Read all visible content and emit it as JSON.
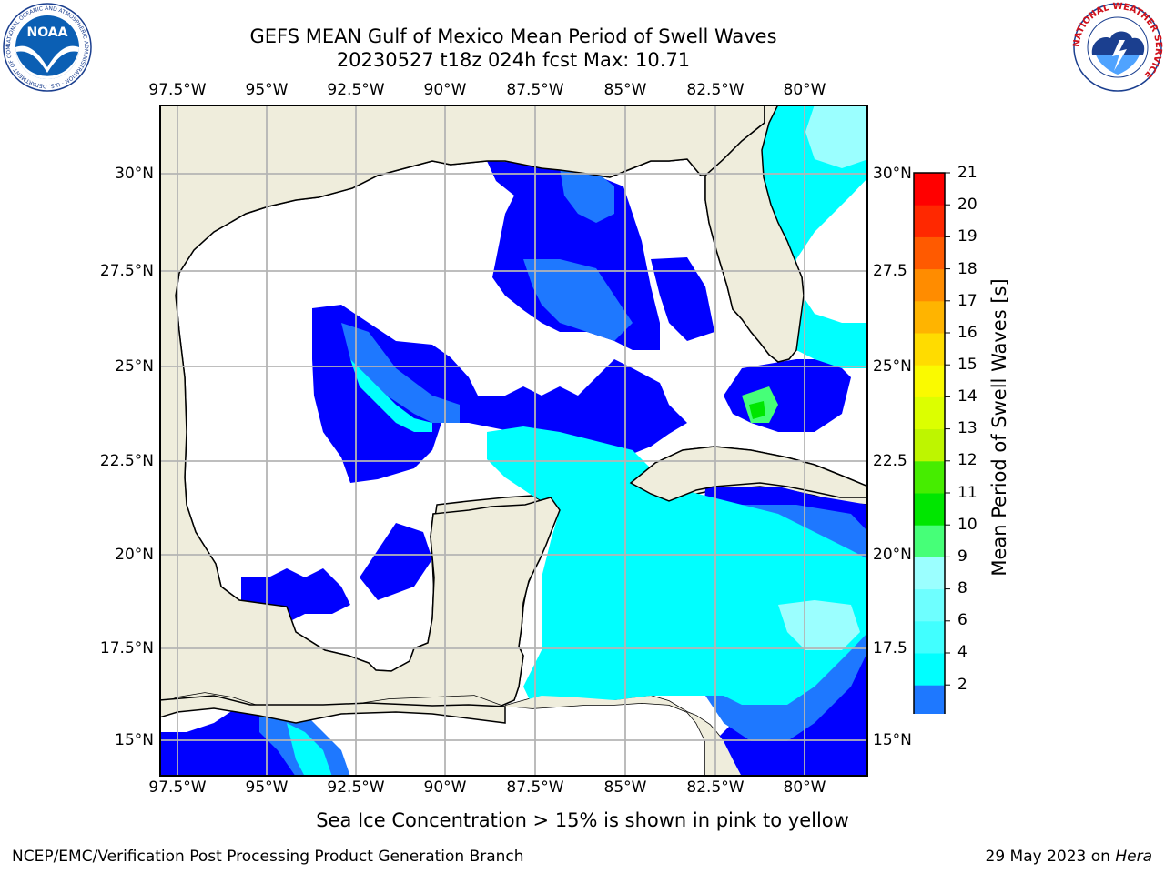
{
  "title": {
    "line1": "GEFS MEAN Gulf of Mexico Mean Period of Swell Waves",
    "line2": "20230527 t18z 024h fcst   Max: 10.71"
  },
  "logos": {
    "left": "NOAA",
    "left_ring_text": "NATIONAL OCEANIC AND ATMOSPHERIC ADMINISTRATION · U.S. DEPARTMENT OF COMMERCE",
    "right_ring_text": "NATIONAL WEATHER SERVICE"
  },
  "map": {
    "lon_labels": [
      "97.5°W",
      "95°W",
      "92.5°W",
      "90°W",
      "87.5°W",
      "85°W",
      "82.5°W",
      "80°W"
    ],
    "lat_labels_left": [
      "30°N",
      "27.5°N",
      "25°N",
      "22.5°N",
      "20°N",
      "17.5°N",
      "15°N"
    ],
    "lat_labels_right": [
      "30°N",
      "27.5",
      "25°N",
      "22.5",
      "20°N",
      "17.5",
      "15°N"
    ],
    "lon_range": [
      -98,
      -78.2
    ],
    "lat_range": [
      14,
      31.5
    ],
    "land_color": "#efeddc",
    "grid": true
  },
  "colorbar": {
    "label": "Mean Period of Swell Waves [s]",
    "ticks": [
      "21",
      "20",
      "19",
      "18",
      "17",
      "16",
      "15",
      "14",
      "13",
      "12",
      "11",
      "10",
      "9",
      "8",
      "6",
      "4",
      "2"
    ],
    "colors": [
      "#0000ff",
      "#1e78ff",
      "#00ffff",
      "#41ffff",
      "#6effff",
      "#9bffff",
      "#46ff78",
      "#00e600",
      "#46ed00",
      "#bef500",
      "#dcff00",
      "#fafa00",
      "#ffdc00",
      "#ffb400",
      "#ff8c00",
      "#ff5a00",
      "#ff2800",
      "#ff0000"
    ]
  },
  "subnote": "Sea Ice Concentration > 15% is shown in pink to yellow",
  "footer": {
    "left": "NCEP/EMC/Verification Post Processing Product Generation Branch",
    "right_date": "29 May 2023 on",
    "right_host": "Hera"
  }
}
